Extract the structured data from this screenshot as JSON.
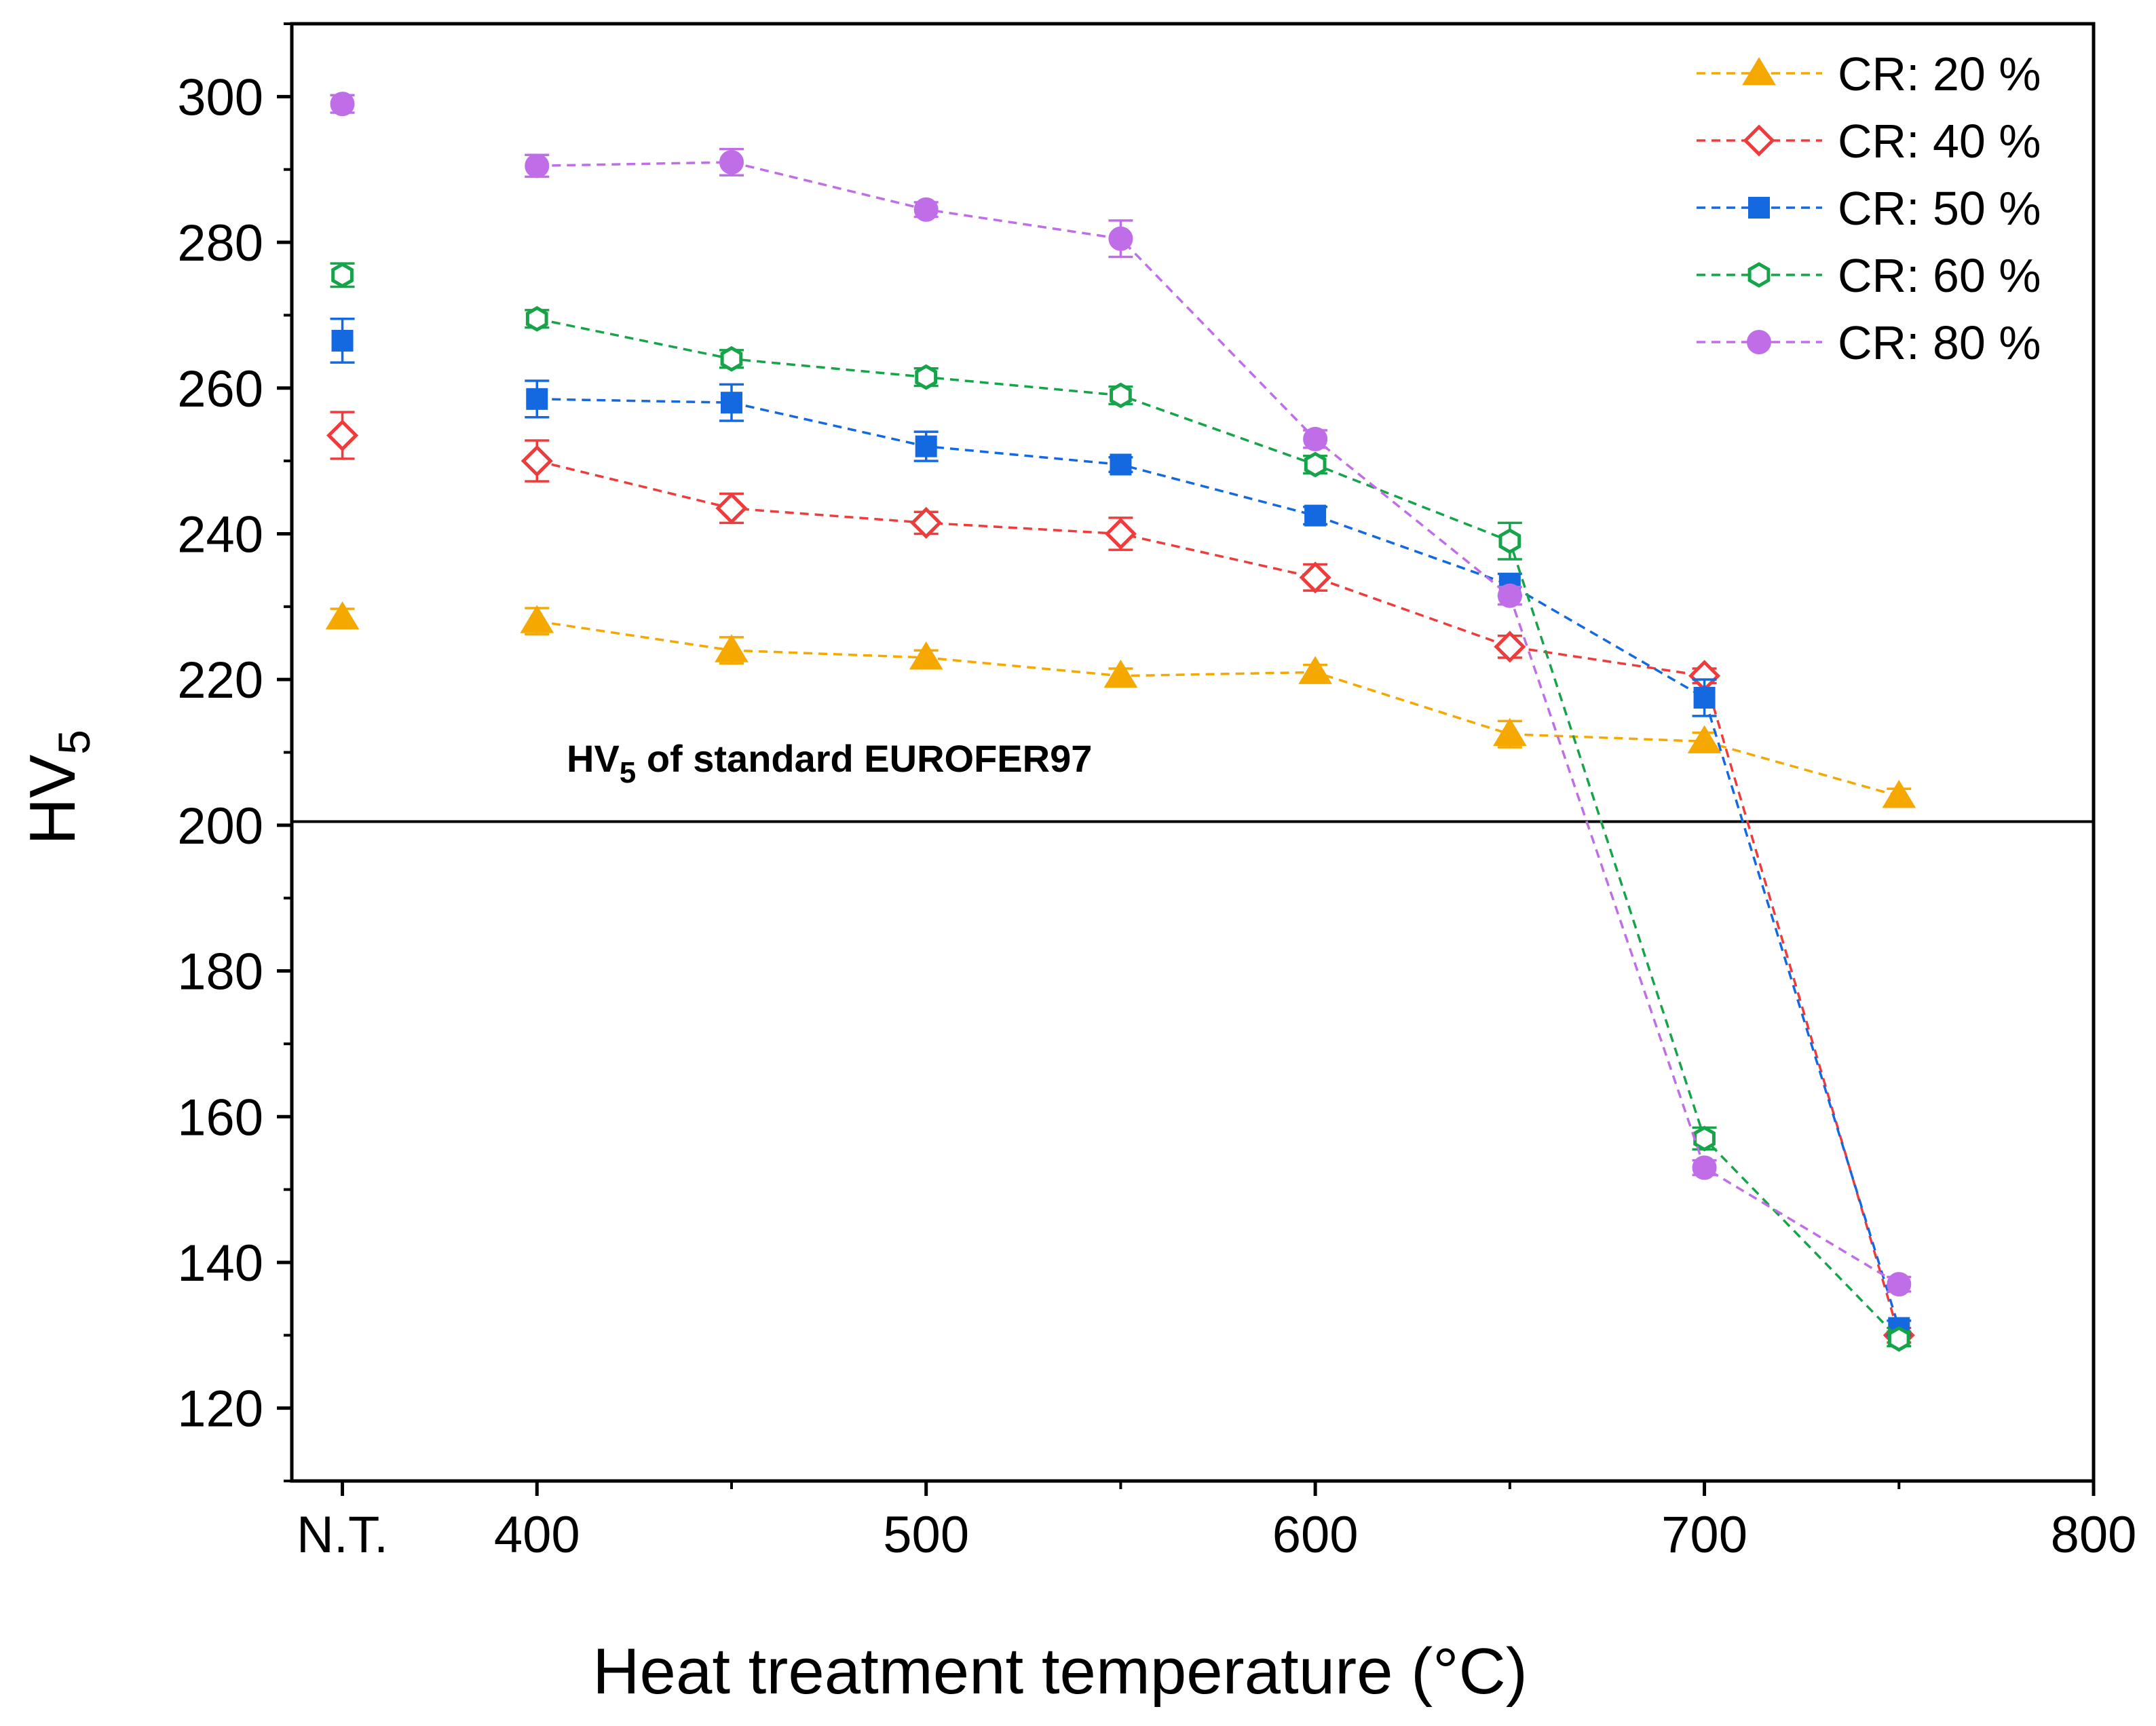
{
  "chart_data": {
    "type": "line",
    "xlabel": "Heat treatment temperature (°C)",
    "ylabel_main": "HV",
    "ylabel_sub": "5",
    "ylim": [
      110,
      310
    ],
    "x_tick_labels": [
      "N.T.",
      "400",
      "500",
      "600",
      "700",
      "800"
    ],
    "x_tick_positions": [
      350,
      400,
      500,
      600,
      700,
      800
    ],
    "y_tick_values": [
      120,
      140,
      160,
      180,
      200,
      220,
      240,
      260,
      280,
      300
    ],
    "y_tick_labels": [
      "120",
      "140",
      "160",
      "180",
      "200",
      "220",
      "240",
      "260",
      "280",
      "300"
    ],
    "x": [
      350,
      400,
      450,
      500,
      550,
      600,
      650,
      700,
      750
    ],
    "reference_line": {
      "value": 200.5,
      "label_main": "HV",
      "label_sub": "5",
      "label_rest": " of standard EUROFER97"
    },
    "series": [
      {
        "name": "CR: 20 %",
        "color": "#F5A800",
        "marker": "triangle-filled",
        "values": [
          228.5,
          228,
          224,
          223,
          220.5,
          221,
          212.5,
          211.5,
          204
        ],
        "errors": [
          1.2,
          1.8,
          1.8,
          1.0,
          1.0,
          1.0,
          1.8,
          1.2,
          1.0
        ]
      },
      {
        "name": "CR: 40 %",
        "color": "#EE3B3B",
        "marker": "diamond-open",
        "values": [
          253.5,
          250,
          243.5,
          241.5,
          240,
          234,
          224.5,
          220.5,
          130
        ],
        "errors": [
          3.2,
          2.8,
          2.0,
          1.5,
          2.2,
          1.8,
          1.5,
          1.0,
          1.0
        ]
      },
      {
        "name": "CR: 50 %",
        "color": "#1469E0",
        "marker": "square-filled",
        "values": [
          266.5,
          258.5,
          258,
          252,
          249.5,
          242.5,
          233,
          217.5,
          131
        ],
        "errors": [
          3.0,
          2.5,
          2.5,
          2.0,
          1.0,
          1.2,
          1.5,
          2.5,
          1.0
        ]
      },
      {
        "name": "CR: 60 %",
        "color": "#16A34A",
        "marker": "hexagon-open",
        "values": [
          275.5,
          269.5,
          264,
          261.5,
          259,
          249.5,
          239,
          157,
          129.5
        ],
        "errors": [
          1.6,
          1.2,
          1.2,
          1.2,
          1.2,
          1.2,
          2.5,
          1.5,
          1.0
        ]
      },
      {
        "name": "CR: 80 %",
        "color": "#C06EE8",
        "marker": "circle-filled",
        "values": [
          299,
          290.5,
          291,
          284.5,
          280.5,
          253,
          231.5,
          153,
          137
        ],
        "errors": [
          1.2,
          1.5,
          1.8,
          1.0,
          2.5,
          1.2,
          1.2,
          1.0,
          1.0
        ]
      }
    ]
  }
}
